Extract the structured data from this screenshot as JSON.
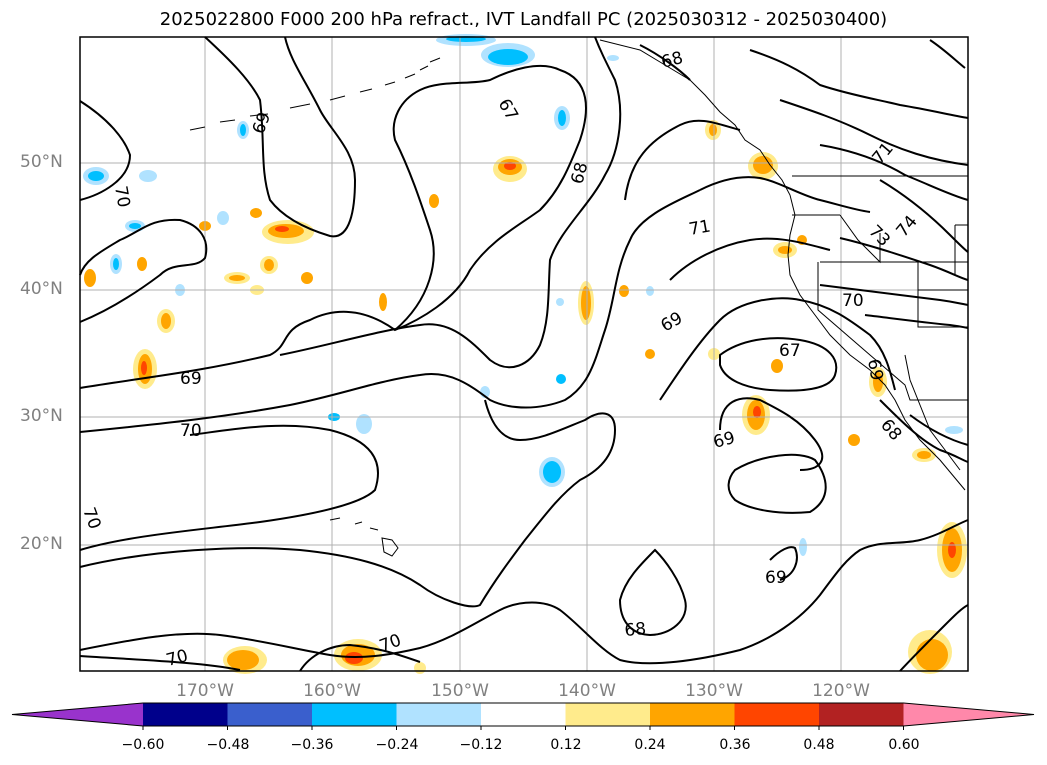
{
  "title": "2025022800 F000 200 hPa refract., IVT Landfall PC (2025030312 - 2025030400)",
  "lat_labels": [
    "50°N",
    "40°N",
    "30°N",
    "20°N"
  ],
  "lon_labels": [
    "170°W",
    "160°W",
    "150°W",
    "140°W",
    "130°W",
    "120°W"
  ],
  "contour_labels": [
    "68",
    "67",
    "69",
    "70",
    "68",
    "71",
    "71",
    "73",
    "74",
    "70",
    "69",
    "67",
    "69",
    "69",
    "68",
    "70",
    "69",
    "68",
    "70",
    "70",
    "69",
    "70"
  ],
  "colorbar": {
    "colors": [
      "#9933cc",
      "#00008b",
      "#3a5fcd",
      "#00bfff",
      "#b0e2ff",
      "#ffffff",
      "#ffeb8c",
      "#ffa500",
      "#ff4500",
      "#b22222",
      "#ff88aa"
    ],
    "ticks": [
      "−0.60",
      "−0.48",
      "−0.36",
      "−0.24",
      "−0.12",
      "0.12",
      "0.24",
      "0.36",
      "0.48",
      "0.60"
    ]
  },
  "fill_colors": {
    "light_orange": "#ffeb8c",
    "orange": "#ffa500",
    "red": "#ff4500",
    "cyan": "#00bfff",
    "light_blue": "#b0e2ff"
  }
}
